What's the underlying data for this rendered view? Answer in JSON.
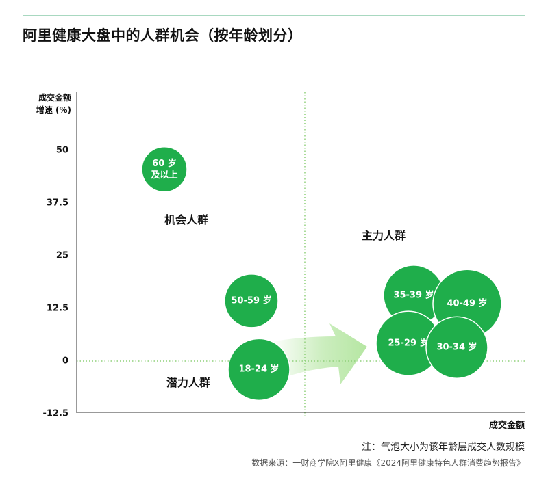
{
  "title": "阿里健康大盘中的人群机会（按年龄划分）",
  "chart_data": {
    "type": "bubble",
    "title": "阿里健康大盘中的人群机会（按年龄划分）",
    "ylabel_line1": "成交金额",
    "ylabel_line2": "增速 (%)",
    "xlabel": "成交金额",
    "ylim": [
      -12.5,
      55
    ],
    "yticks": [
      "50",
      "37.5",
      "25",
      "12.5",
      "0",
      "-12.5"
    ],
    "ytick_values": [
      50,
      37.5,
      25,
      12.5,
      0,
      -12.5
    ],
    "quadrant_labels": {
      "opportunity": "机会人群",
      "main": "主力人群",
      "potential": "潜力人群"
    },
    "series": [
      {
        "label_line1": "60 岁",
        "label_line2": "及以上",
        "y": 45.5
      },
      {
        "label_line1": "50-59 岁",
        "label_line2": "",
        "y": 14.3
      },
      {
        "label_line1": "18-24 岁",
        "label_line2": "",
        "y": -2
      },
      {
        "label_line1": "35-39 岁",
        "label_line2": "",
        "y": 15.6
      },
      {
        "label_line1": "40-49 岁",
        "label_line2": "",
        "y": 13.6
      },
      {
        "label_line1": "25-29 岁",
        "label_line2": "",
        "y": 4.2
      },
      {
        "label_line1": "30-34 岁",
        "label_line2": "",
        "y": 3.2
      }
    ],
    "colors": {
      "bubble": "#1fae4b",
      "bubble_stroke": "#ffffff",
      "guide": "#8fd07a",
      "arrow": "#b5e6a2",
      "topline": "#a8d8c0"
    }
  },
  "note": "注：气泡大小为该年龄层成交人数规模",
  "source": "数据来源：一财商学院X阿里健康《2024阿里健康特色人群消费趋势报告》"
}
